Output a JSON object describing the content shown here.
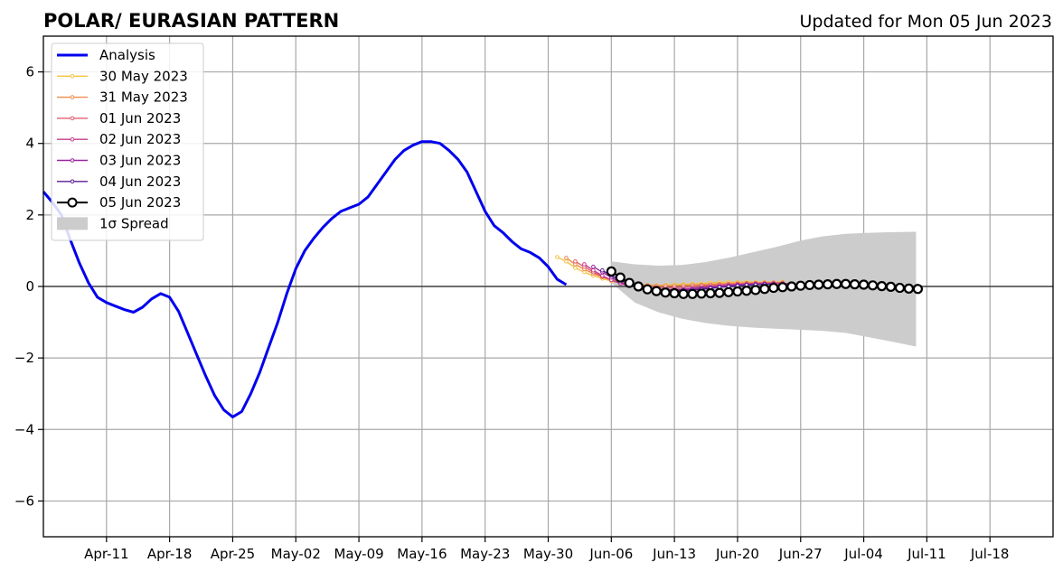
{
  "title": "POLAR/ EURASIAN  PATTERN",
  "subtitle": "Updated for Mon 05 Jun 2023",
  "chart_data": {
    "type": "line",
    "title": "POLAR/ EURASIAN  PATTERN",
    "subtitle": "Updated for Mon 05 Jun 2023",
    "xlabel": "",
    "ylabel": "",
    "xlim": [
      "2023-04-04",
      "2023-07-25"
    ],
    "ylim": [
      -7,
      7
    ],
    "x_ticks": [
      "Apr-11",
      "Apr-18",
      "Apr-25",
      "May-02",
      "May-09",
      "May-16",
      "May-23",
      "May-30",
      "Jun-06",
      "Jun-13",
      "Jun-20",
      "Jun-27",
      "Jul-04",
      "Jul-11",
      "Jul-18"
    ],
    "y_ticks": [
      -6,
      -4,
      -2,
      0,
      2,
      4,
      6
    ],
    "grid": true,
    "legend_position": "top-left",
    "zero_line": true,
    "series": [
      {
        "name": "Analysis",
        "color": "#0000ee",
        "start": "2023-04-04",
        "values": [
          2.65,
          2.35,
          2.0,
          1.3,
          0.65,
          0.1,
          -0.3,
          -0.45,
          -0.55,
          -0.65,
          -0.72,
          -0.58,
          -0.35,
          -0.2,
          -0.3,
          -0.7,
          -1.3,
          -1.9,
          -2.5,
          -3.05,
          -3.45,
          -3.65,
          -3.5,
          -3.0,
          -2.4,
          -1.7,
          -1.0,
          -0.2,
          0.5,
          1.0,
          1.35,
          1.65,
          1.9,
          2.1,
          2.2,
          2.3,
          2.5,
          2.85,
          3.2,
          3.55,
          3.8,
          3.95,
          4.05,
          4.05,
          4.0,
          3.8,
          3.55,
          3.2,
          2.65,
          2.1,
          1.7,
          1.5,
          1.25,
          1.05,
          0.95,
          0.8,
          0.55,
          0.2,
          0.05
        ]
      },
      {
        "name": "30 May 2023",
        "color": "#f5c242",
        "start": "2023-05-31",
        "values": [
          0.82,
          0.7,
          0.52,
          0.4,
          0.3,
          0.22,
          0.15,
          0.1,
          0.07,
          0.05,
          0.04,
          0.03,
          0.04,
          0.05,
          0.06,
          0.07,
          0.08,
          0.1,
          0.11,
          0.12,
          0.12,
          0.13,
          0.12,
          0.12,
          0.12,
          0.13
        ]
      },
      {
        "name": "31 May 2023",
        "color": "#f08a4b",
        "start": "2023-06-01",
        "values": [
          0.8,
          0.62,
          0.48,
          0.36,
          0.26,
          0.18,
          0.12,
          0.08,
          0.05,
          0.03,
          0.02,
          0.02,
          0.02,
          0.03,
          0.04,
          0.05,
          0.06,
          0.07,
          0.08,
          0.09,
          0.1,
          0.1,
          0.11,
          0.11,
          0.11
        ]
      },
      {
        "name": "01 Jun 2023",
        "color": "#e0606e",
        "start": "2023-06-02",
        "values": [
          0.7,
          0.55,
          0.4,
          0.28,
          0.18,
          0.1,
          0.05,
          0.02,
          0.0,
          -0.02,
          -0.03,
          -0.03,
          -0.02,
          0.0,
          0.02,
          0.03,
          0.05,
          0.06,
          0.07,
          0.08,
          0.09,
          0.09,
          0.1,
          0.1
        ]
      },
      {
        "name": "02 Jun 2023",
        "color": "#c53c8b",
        "start": "2023-06-03",
        "values": [
          0.62,
          0.45,
          0.3,
          0.18,
          0.08,
          0.02,
          -0.02,
          -0.05,
          -0.07,
          -0.08,
          -0.08,
          -0.07,
          -0.05,
          -0.03,
          -0.01,
          0.01,
          0.03,
          0.05,
          0.06,
          0.07,
          0.08,
          0.08,
          0.08,
          0.08
        ]
      },
      {
        "name": "03 Jun 2023",
        "color": "#9a24a0",
        "start": "2023-06-04",
        "values": [
          0.55,
          0.4,
          0.25,
          0.12,
          0.04,
          -0.02,
          -0.06,
          -0.09,
          -0.1,
          -0.1,
          -0.09,
          -0.07,
          -0.05,
          -0.03,
          0.0,
          0.02,
          0.04,
          0.05,
          0.06,
          0.07,
          0.07
        ]
      },
      {
        "name": "04 Jun 2023",
        "color": "#5a1c96",
        "start": "2023-06-05",
        "values": [
          0.45,
          0.3,
          0.18,
          0.07,
          0.0,
          -0.05,
          -0.08,
          -0.1,
          -0.11,
          -0.11,
          -0.1,
          -0.08,
          -0.05,
          -0.02,
          0.0,
          0.02,
          0.04,
          0.05,
          0.06,
          0.06
        ]
      },
      {
        "name": "05 Jun 2023",
        "color": "#000000",
        "start": "2023-06-06",
        "values": [
          0.42,
          0.25,
          0.1,
          0.0,
          -0.08,
          -0.13,
          -0.17,
          -0.19,
          -0.21,
          -0.21,
          -0.2,
          -0.19,
          -0.18,
          -0.16,
          -0.14,
          -0.12,
          -0.1,
          -0.07,
          -0.04,
          -0.02,
          0.0,
          0.02,
          0.04,
          0.05,
          0.06,
          0.07,
          0.07,
          0.06,
          0.05,
          0.03,
          0.01,
          -0.01,
          -0.04,
          -0.06,
          -0.07
        ]
      },
      {
        "name": "1σ Spread",
        "color": "#cccccc",
        "type": "area",
        "start": "2023-06-06",
        "upper": [
          0.7,
          0.62,
          0.58,
          0.6,
          0.68,
          0.8,
          0.95,
          1.1,
          1.27,
          1.4,
          1.47,
          1.5,
          1.52,
          1.53
        ],
        "lower": [
          0.1,
          -0.45,
          -0.72,
          -0.9,
          -1.02,
          -1.1,
          -1.15,
          -1.18,
          -1.21,
          -1.24,
          -1.3,
          -1.42,
          -1.55,
          -1.68
        ],
        "step_days": 2.6
      }
    ]
  }
}
